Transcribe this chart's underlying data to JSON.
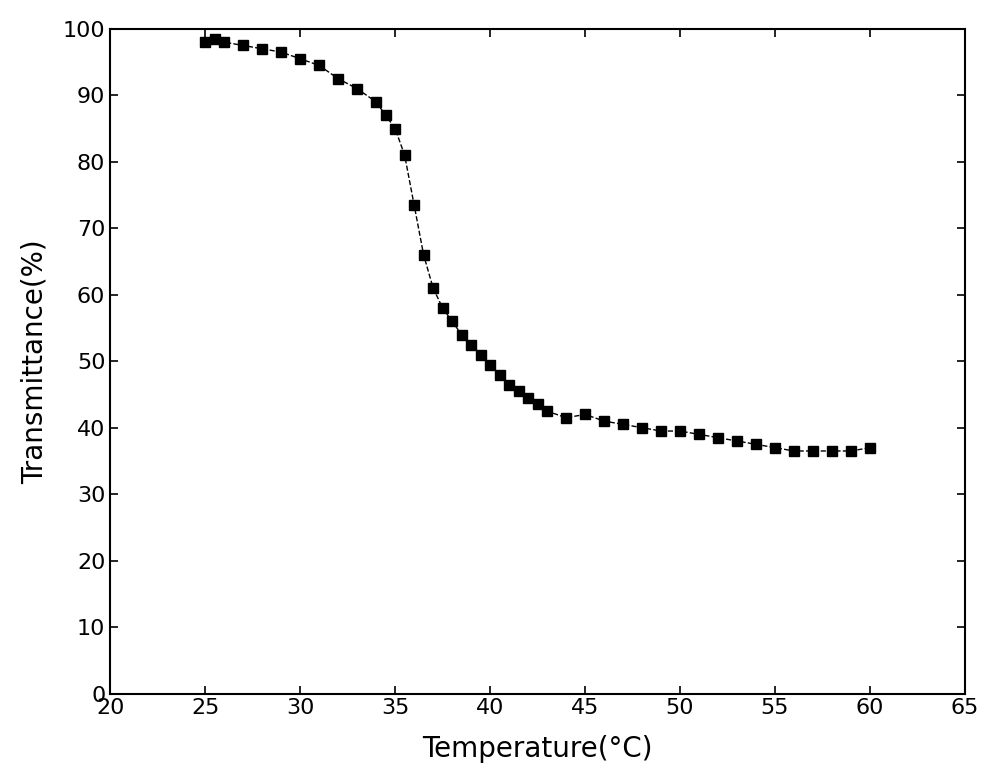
{
  "temperature": [
    25,
    25.5,
    26,
    27,
    28,
    29,
    30,
    31,
    32,
    33,
    34,
    34.5,
    35,
    35.5,
    36,
    36.5,
    37,
    37.5,
    38,
    38.5,
    39,
    39.5,
    40,
    40.5,
    41,
    41.5,
    42,
    42.5,
    43,
    44,
    45,
    46,
    47,
    48,
    49,
    50,
    51,
    52,
    53,
    54,
    55,
    56,
    57,
    58,
    59,
    60
  ],
  "transmittance": [
    98,
    98.5,
    98,
    97.5,
    97,
    96.5,
    95.5,
    94.5,
    92.5,
    91,
    89,
    87,
    85,
    81,
    73.5,
    66,
    61,
    58,
    56,
    54,
    52.5,
    51,
    49.5,
    48,
    46.5,
    45.5,
    44.5,
    43.5,
    42.5,
    41.5,
    42,
    41,
    40.5,
    40,
    39.5,
    39.5,
    39,
    38.5,
    38,
    37.5,
    37,
    36.5,
    36.5,
    36.5,
    36.5,
    37
  ],
  "line_color": "#000000",
  "marker": "s",
  "marker_size": 7,
  "line_style": "--",
  "line_width": 1.0,
  "xlabel": "Temperature(°C)",
  "ylabel": "Transmittance(%)",
  "xlim": [
    20,
    65
  ],
  "ylim": [
    0,
    100
  ],
  "xticks": [
    20,
    25,
    30,
    35,
    40,
    45,
    50,
    55,
    60,
    65
  ],
  "yticks": [
    0,
    10,
    20,
    30,
    40,
    50,
    60,
    70,
    80,
    90,
    100
  ],
  "xlabel_fontsize": 20,
  "ylabel_fontsize": 20,
  "tick_fontsize": 16,
  "background_color": "#ffffff",
  "figure_width": 10.0,
  "figure_height": 7.84
}
